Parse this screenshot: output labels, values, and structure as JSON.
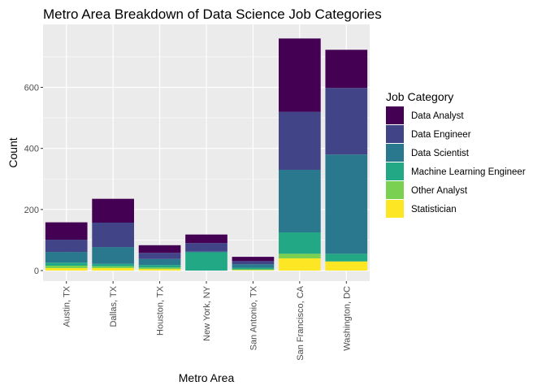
{
  "chart_data": {
    "type": "bar",
    "stacked": true,
    "title": "Metro Area Breakdown of Data Science Job Categories",
    "xlabel": "Metro Area",
    "ylabel": "Count",
    "ylim": [
      0,
      760
    ],
    "yticks": [
      0,
      200,
      400,
      600
    ],
    "grid": true,
    "legend_position": "right",
    "legend_title": "Job Category",
    "categories": [
      "Austin, TX",
      "Dallas, TX",
      "Houston, TX",
      "New York, NY",
      "San Antonio, TX",
      "San Francisco, CA",
      "Washington, DC"
    ],
    "series": [
      {
        "name": "Data Analyst",
        "color": "#440154",
        "values": [
          57,
          78,
          25,
          28,
          14,
          240,
          125
        ]
      },
      {
        "name": "Data Engineer",
        "color": "#414487",
        "values": [
          40,
          80,
          20,
          28,
          10,
          190,
          218
        ]
      },
      {
        "name": "Data Scientist",
        "color": "#2A788E",
        "values": [
          35,
          55,
          20,
          2,
          12,
          205,
          325
        ]
      },
      {
        "name": "Machine Learning Engineer",
        "color": "#22A884",
        "values": [
          10,
          8,
          8,
          60,
          5,
          70,
          25
        ]
      },
      {
        "name": "Other Analyst",
        "color": "#7AD151",
        "values": [
          8,
          6,
          5,
          0,
          2,
          15,
          0
        ]
      },
      {
        "name": "Statistician",
        "color": "#FDE725",
        "values": [
          8,
          8,
          5,
          0,
          2,
          40,
          30
        ]
      }
    ]
  }
}
